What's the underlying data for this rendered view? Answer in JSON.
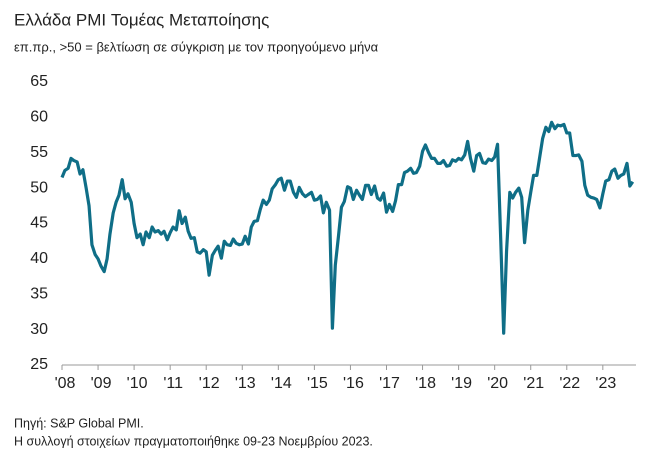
{
  "chart_data": {
    "type": "line",
    "title": "Ελλάδα PMI Τομέας Μεταποίησης",
    "subtitle": "επ.πρ., >50 = βελτίωση σε σύγκριση με τον προηγούμενο μήνα",
    "notes": [
      "Πηγή: S&P Global PMI.",
      "Η συλλογή στοιχείων πραγματοποιήθηκε 09-23 Νοεμβρίου 2023."
    ],
    "x": [
      2008,
      2008.08,
      2008.17,
      2008.25,
      2008.33,
      2008.42,
      2008.5,
      2008.58,
      2008.67,
      2008.75,
      2008.83,
      2008.92,
      2009,
      2009.08,
      2009.17,
      2009.25,
      2009.33,
      2009.42,
      2009.5,
      2009.58,
      2009.67,
      2009.75,
      2009.83,
      2009.92,
      2010,
      2010.08,
      2010.17,
      2010.25,
      2010.33,
      2010.42,
      2010.5,
      2010.58,
      2010.67,
      2010.75,
      2010.83,
      2010.92,
      2011,
      2011.08,
      2011.17,
      2011.25,
      2011.33,
      2011.42,
      2011.5,
      2011.58,
      2011.67,
      2011.75,
      2011.83,
      2011.92,
      2012,
      2012.08,
      2012.17,
      2012.25,
      2012.33,
      2012.42,
      2012.5,
      2012.58,
      2012.67,
      2012.75,
      2012.83,
      2012.92,
      2013,
      2013.08,
      2013.17,
      2013.25,
      2013.33,
      2013.42,
      2013.5,
      2013.58,
      2013.67,
      2013.75,
      2013.83,
      2013.92,
      2014,
      2014.08,
      2014.17,
      2014.25,
      2014.33,
      2014.42,
      2014.5,
      2014.58,
      2014.67,
      2014.75,
      2014.83,
      2014.92,
      2015,
      2015.08,
      2015.17,
      2015.25,
      2015.33,
      2015.42,
      2015.5,
      2015.58,
      2015.67,
      2015.75,
      2015.83,
      2015.92,
      2016,
      2016.08,
      2016.17,
      2016.25,
      2016.33,
      2016.42,
      2016.5,
      2016.58,
      2016.67,
      2016.75,
      2016.83,
      2016.92,
      2017,
      2017.08,
      2017.17,
      2017.25,
      2017.33,
      2017.42,
      2017.5,
      2017.58,
      2017.67,
      2017.75,
      2017.83,
      2017.92,
      2018,
      2018.08,
      2018.17,
      2018.25,
      2018.33,
      2018.42,
      2018.5,
      2018.58,
      2018.67,
      2018.75,
      2018.83,
      2018.92,
      2019,
      2019.08,
      2019.17,
      2019.25,
      2019.33,
      2019.42,
      2019.5,
      2019.58,
      2019.67,
      2019.75,
      2019.83,
      2019.92,
      2020,
      2020.08,
      2020.17,
      2020.25,
      2020.33,
      2020.42,
      2020.5,
      2020.58,
      2020.67,
      2020.75,
      2020.83,
      2020.92,
      2021,
      2021.08,
      2021.17,
      2021.25,
      2021.33,
      2021.42,
      2021.5,
      2021.58,
      2021.67,
      2021.75,
      2021.83,
      2021.92,
      2022,
      2022.08,
      2022.17,
      2022.25,
      2022.33,
      2022.42,
      2022.5,
      2022.58,
      2022.67,
      2022.75,
      2022.83,
      2022.92,
      2023,
      2023.08,
      2023.17,
      2023.25,
      2023.33,
      2023.42,
      2023.5,
      2023.58,
      2023.67,
      2023.75,
      2023.83
    ],
    "series": [
      {
        "color": "#0f6e87",
        "values": [
          51.5,
          52.5,
          52.8,
          54.2,
          53.9,
          53.7,
          52.0,
          52.6,
          50.0,
          47.5,
          42.0,
          40.6,
          40.0,
          39.0,
          38.2,
          40.0,
          43.5,
          46.5,
          48.0,
          49.0,
          51.2,
          48.5,
          49.2,
          48.0,
          45.0,
          43.0,
          43.5,
          42.0,
          43.8,
          43.0,
          44.5,
          43.8,
          44.0,
          43.5,
          43.9,
          42.7,
          43.7,
          44.5,
          44.1,
          46.8,
          45.0,
          45.9,
          43.9,
          42.9,
          43.0,
          41.0,
          40.8,
          41.3,
          41.0,
          37.7,
          40.5,
          41.2,
          41.8,
          40.1,
          42.5,
          42.0,
          41.9,
          42.8,
          42.2,
          42.0,
          42.1,
          43.2,
          42.1,
          44.5,
          45.3,
          45.4,
          47.0,
          48.3,
          47.7,
          48.3,
          49.9,
          50.5,
          51.2,
          51.4,
          49.7,
          51.0,
          51.0,
          49.4,
          48.7,
          50.1,
          49.2,
          48.8,
          49.1,
          49.4,
          48.3,
          48.4,
          48.9,
          46.5,
          48.0,
          46.9,
          30.2,
          39.1,
          43.3,
          47.3,
          48.1,
          50.2,
          50.0,
          48.4,
          49.7,
          49.0,
          48.4,
          50.4,
          50.4,
          49.1,
          50.3,
          48.6,
          48.3,
          49.3,
          46.6,
          47.7,
          46.7,
          48.2,
          50.5,
          50.5,
          52.2,
          52.4,
          52.8,
          52.1,
          52.2,
          53.1,
          55.2,
          56.1,
          55.0,
          54.2,
          54.2,
          53.5,
          53.5,
          53.9,
          53.1,
          53.2,
          54.0,
          53.8,
          54.2,
          54.0,
          54.7,
          56.6,
          54.2,
          52.4,
          54.6,
          54.9,
          53.6,
          53.5,
          54.1,
          53.9,
          54.4,
          56.2,
          42.5,
          29.5,
          41.1,
          49.4,
          48.6,
          49.4,
          50.0,
          48.7,
          42.3,
          46.9,
          49.4,
          51.8,
          51.8,
          54.4,
          57.0,
          58.6,
          58.0,
          59.3,
          58.4,
          58.9,
          58.8,
          59.0,
          57.8,
          57.8,
          54.6,
          54.6,
          54.7,
          53.8,
          50.4,
          49.0,
          48.7,
          48.6,
          48.4,
          47.2,
          49.2,
          51.0,
          51.2,
          52.4,
          52.7,
          51.4,
          51.8,
          52.0,
          53.5,
          50.3,
          50.9
        ]
      }
    ],
    "xlim": [
      2008,
      2023.92
    ],
    "xticks": [
      {
        "value": 2008,
        "label": "'08"
      },
      {
        "value": 2009,
        "label": "'09"
      },
      {
        "value": 2010,
        "label": "'10"
      },
      {
        "value": 2011,
        "label": "'11"
      },
      {
        "value": 2012,
        "label": "'12"
      },
      {
        "value": 2013,
        "label": "'13"
      },
      {
        "value": 2014,
        "label": "'14"
      },
      {
        "value": 2015,
        "label": "'15"
      },
      {
        "value": 2016,
        "label": "'16"
      },
      {
        "value": 2017,
        "label": "'17"
      },
      {
        "value": 2018,
        "label": "'18"
      },
      {
        "value": 2019,
        "label": "'19"
      },
      {
        "value": 2020,
        "label": "'20"
      },
      {
        "value": 2021,
        "label": "'21"
      },
      {
        "value": 2022,
        "label": "'22"
      },
      {
        "value": 2023,
        "label": "'23"
      }
    ],
    "ylim": [
      25,
      65
    ],
    "yticks": [
      25,
      30,
      35,
      40,
      45,
      50,
      55,
      60,
      65
    ],
    "grid": false
  }
}
